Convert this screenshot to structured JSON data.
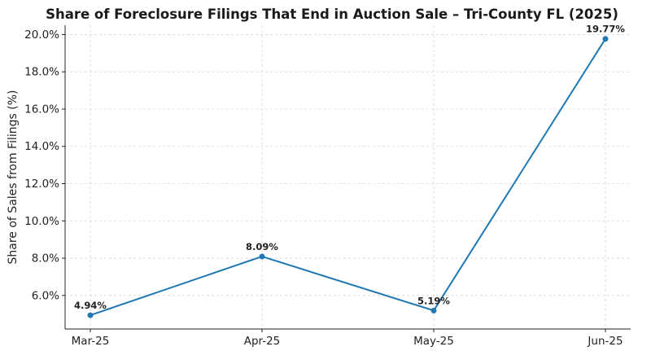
{
  "chart_data": {
    "type": "line",
    "title": "Share of Foreclosure Filings That End in Auction Sale – Tri-County FL (2025)",
    "xlabel": "",
    "ylabel": "Share of Sales from Filings (%)",
    "categories": [
      "Mar-25",
      "Apr-25",
      "May-25",
      "Jun-25"
    ],
    "series": [
      {
        "values": [
          4.94,
          8.09,
          5.19,
          19.77
        ],
        "labels": [
          "4.94%",
          "8.09%",
          "5.19%",
          "19.77%"
        ],
        "color": "#1f77b4"
      }
    ],
    "yticks": [
      6.0,
      8.0,
      10.0,
      12.0,
      14.0,
      16.0,
      18.0,
      20.0
    ],
    "ytick_labels": [
      "6.0%",
      "8.0%",
      "10.0%",
      "12.0%",
      "14.0%",
      "16.0%",
      "18.0%",
      "20.0%"
    ],
    "ylim": [
      4.2,
      20.5
    ],
    "grid": true,
    "legend": "none"
  }
}
